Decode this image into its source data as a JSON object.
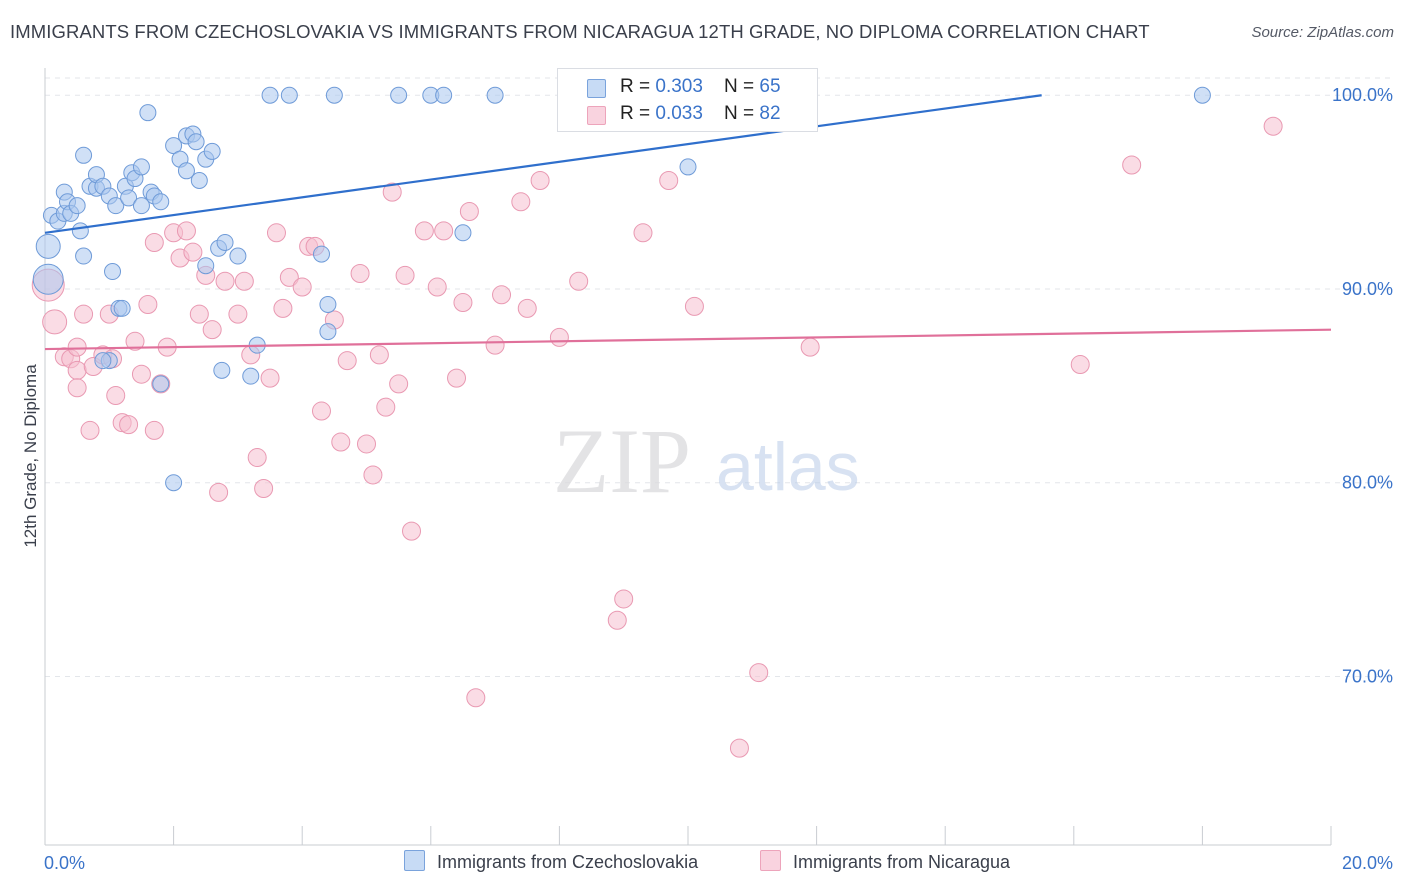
{
  "title": "IMMIGRANTS FROM CZECHOSLOVAKIA VS IMMIGRANTS FROM NICARAGUA 12TH GRADE, NO DIPLOMA CORRELATION CHART",
  "source": "Source: ZipAtlas.com",
  "watermark": {
    "zip": "ZIP",
    "atlas": "atlas"
  },
  "colors": {
    "blue_fill": "#a9c6ee",
    "blue_stroke": "#6f9bd8",
    "blue_line": "#2f6fcc",
    "pink_fill": "#f6bfd0",
    "pink_stroke": "#e999b2",
    "pink_line": "#e0709a",
    "value_text": "#3a73c9",
    "grid": "#e3e6ea"
  },
  "legend": {
    "rows": [
      {
        "r_label": "R = ",
        "r_value": "0.303",
        "n_label": "N = ",
        "n_value": "65"
      },
      {
        "r_label": "R = ",
        "r_value": "0.033",
        "n_label": "N = ",
        "n_value": "82"
      }
    ],
    "bottom": [
      "Immigrants from Czechoslovakia",
      "Immigrants from Nicaragua"
    ]
  },
  "chart_data": {
    "type": "scatter",
    "title": "IMMIGRANTS FROM CZECHOSLOVAKIA VS IMMIGRANTS FROM NICARAGUA 12TH GRADE, NO DIPLOMA CORRELATION CHART",
    "xlabel": "",
    "ylabel": "12th Grade, No Diploma",
    "xlim": [
      0,
      20
    ],
    "ylim": [
      61.3,
      101.2
    ],
    "x_tick_labels": [
      "0.0%",
      "20.0%"
    ],
    "y_ticks": [
      100,
      90,
      80,
      70
    ],
    "y_tick_labels": [
      "100.0%",
      "90.0%",
      "80.0%",
      "70.0%"
    ],
    "grid": true,
    "legend_placement": "top-center",
    "series": [
      {
        "name": "Immigrants from Czechoslovakia",
        "color": "#a9c6ee",
        "r": 0.303,
        "n": 65,
        "trend": {
          "x": [
            0,
            15.5
          ],
          "y": [
            92.9,
            100.0
          ]
        },
        "points": [
          [
            0.05,
            92.2
          ],
          [
            0.05,
            90.5
          ],
          [
            0.1,
            93.8
          ],
          [
            0.2,
            93.5
          ],
          [
            0.3,
            93.9
          ],
          [
            0.3,
            95.0
          ],
          [
            0.35,
            94.5
          ],
          [
            0.4,
            93.9
          ],
          [
            0.5,
            94.3
          ],
          [
            0.55,
            93.0
          ],
          [
            0.6,
            96.9
          ],
          [
            0.6,
            91.7
          ],
          [
            0.7,
            95.3
          ],
          [
            0.8,
            95.2
          ],
          [
            0.8,
            95.9
          ],
          [
            0.9,
            95.3
          ],
          [
            1.0,
            94.8
          ],
          [
            1.05,
            90.9
          ],
          [
            1.1,
            94.3
          ],
          [
            1.15,
            89.0
          ],
          [
            1.2,
            89.0
          ],
          [
            1.25,
            95.3
          ],
          [
            1.3,
            94.7
          ],
          [
            1.35,
            96.0
          ],
          [
            1.4,
            95.7
          ],
          [
            1.5,
            94.3
          ],
          [
            1.5,
            96.3
          ],
          [
            1.6,
            99.1
          ],
          [
            1.65,
            95.0
          ],
          [
            1.7,
            94.8
          ],
          [
            1.8,
            94.5
          ],
          [
            1.8,
            85.1
          ],
          [
            2.0,
            80.0
          ],
          [
            2.0,
            97.4
          ],
          [
            2.1,
            96.7
          ],
          [
            2.2,
            97.9
          ],
          [
            2.2,
            96.1
          ],
          [
            2.3,
            98.0
          ],
          [
            2.35,
            97.6
          ],
          [
            2.4,
            95.6
          ],
          [
            2.5,
            91.2
          ],
          [
            2.5,
            96.7
          ],
          [
            2.6,
            97.1
          ],
          [
            2.7,
            92.1
          ],
          [
            2.75,
            85.8
          ],
          [
            2.8,
            92.4
          ],
          [
            3.0,
            91.7
          ],
          [
            3.2,
            85.5
          ],
          [
            3.5,
            100.0
          ],
          [
            3.8,
            100.0
          ],
          [
            4.5,
            100.0
          ],
          [
            4.4,
            89.2
          ],
          [
            5.5,
            100.0
          ],
          [
            6.0,
            100.0
          ],
          [
            6.2,
            100.0
          ],
          [
            6.5,
            92.9
          ],
          [
            7.0,
            100.0
          ],
          [
            1.0,
            86.3
          ],
          [
            3.3,
            87.1
          ],
          [
            4.4,
            87.8
          ],
          [
            4.3,
            91.8
          ],
          [
            0.9,
            86.3
          ],
          [
            10.0,
            100.0
          ],
          [
            10.0,
            96.3
          ],
          [
            18.0,
            100.0
          ]
        ]
      },
      {
        "name": "Immigrants from Nicaragua",
        "color": "#f6bfd0",
        "r": 0.033,
        "n": 82,
        "trend": {
          "x": [
            0,
            20
          ],
          "y": [
            86.9,
            87.9
          ]
        },
        "points": [
          [
            0.05,
            90.2
          ],
          [
            0.15,
            88.3
          ],
          [
            0.3,
            86.5
          ],
          [
            0.4,
            86.4
          ],
          [
            0.5,
            85.8
          ],
          [
            0.5,
            84.9
          ],
          [
            0.6,
            88.7
          ],
          [
            0.7,
            82.7
          ],
          [
            0.75,
            86.0
          ],
          [
            0.9,
            86.6
          ],
          [
            1.0,
            88.7
          ],
          [
            1.05,
            86.4
          ],
          [
            1.1,
            84.5
          ],
          [
            1.2,
            83.1
          ],
          [
            1.3,
            83.0
          ],
          [
            1.4,
            87.3
          ],
          [
            1.5,
            85.6
          ],
          [
            1.6,
            89.2
          ],
          [
            1.7,
            92.4
          ],
          [
            1.7,
            82.7
          ],
          [
            1.8,
            85.1
          ],
          [
            1.9,
            87.0
          ],
          [
            2.0,
            92.9
          ],
          [
            2.1,
            91.6
          ],
          [
            2.2,
            93.0
          ],
          [
            2.3,
            91.9
          ],
          [
            2.4,
            88.7
          ],
          [
            2.5,
            90.7
          ],
          [
            2.6,
            87.9
          ],
          [
            2.7,
            79.5
          ],
          [
            2.8,
            90.4
          ],
          [
            3.0,
            88.7
          ],
          [
            3.1,
            90.4
          ],
          [
            3.2,
            86.6
          ],
          [
            3.3,
            81.3
          ],
          [
            3.4,
            79.7
          ],
          [
            3.5,
            85.4
          ],
          [
            3.6,
            92.9
          ],
          [
            3.7,
            89.0
          ],
          [
            3.8,
            90.6
          ],
          [
            4.0,
            90.1
          ],
          [
            4.1,
            92.2
          ],
          [
            4.2,
            92.2
          ],
          [
            4.3,
            83.7
          ],
          [
            4.5,
            88.4
          ],
          [
            4.6,
            82.1
          ],
          [
            4.7,
            86.3
          ],
          [
            4.9,
            90.8
          ],
          [
            5.0,
            82.0
          ],
          [
            5.1,
            80.4
          ],
          [
            5.2,
            86.6
          ],
          [
            5.3,
            83.9
          ],
          [
            5.4,
            95.0
          ],
          [
            5.5,
            85.1
          ],
          [
            5.6,
            90.7
          ],
          [
            5.7,
            77.5
          ],
          [
            5.9,
            93.0
          ],
          [
            6.1,
            90.1
          ],
          [
            6.2,
            93.0
          ],
          [
            6.4,
            85.4
          ],
          [
            6.5,
            89.3
          ],
          [
            6.6,
            94.0
          ],
          [
            6.7,
            68.9
          ],
          [
            7.0,
            87.1
          ],
          [
            7.1,
            89.7
          ],
          [
            7.4,
            94.5
          ],
          [
            7.5,
            89.0
          ],
          [
            7.7,
            95.6
          ],
          [
            8.0,
            87.5
          ],
          [
            8.3,
            90.4
          ],
          [
            8.9,
            72.9
          ],
          [
            9.0,
            74.0
          ],
          [
            9.3,
            92.9
          ],
          [
            9.7,
            95.6
          ],
          [
            10.1,
            89.1
          ],
          [
            10.8,
            66.3
          ],
          [
            11.1,
            70.2
          ],
          [
            11.9,
            87.0
          ],
          [
            16.1,
            86.1
          ],
          [
            16.9,
            96.4
          ],
          [
            19.1,
            98.4
          ],
          [
            0.5,
            87.0
          ]
        ]
      }
    ]
  }
}
